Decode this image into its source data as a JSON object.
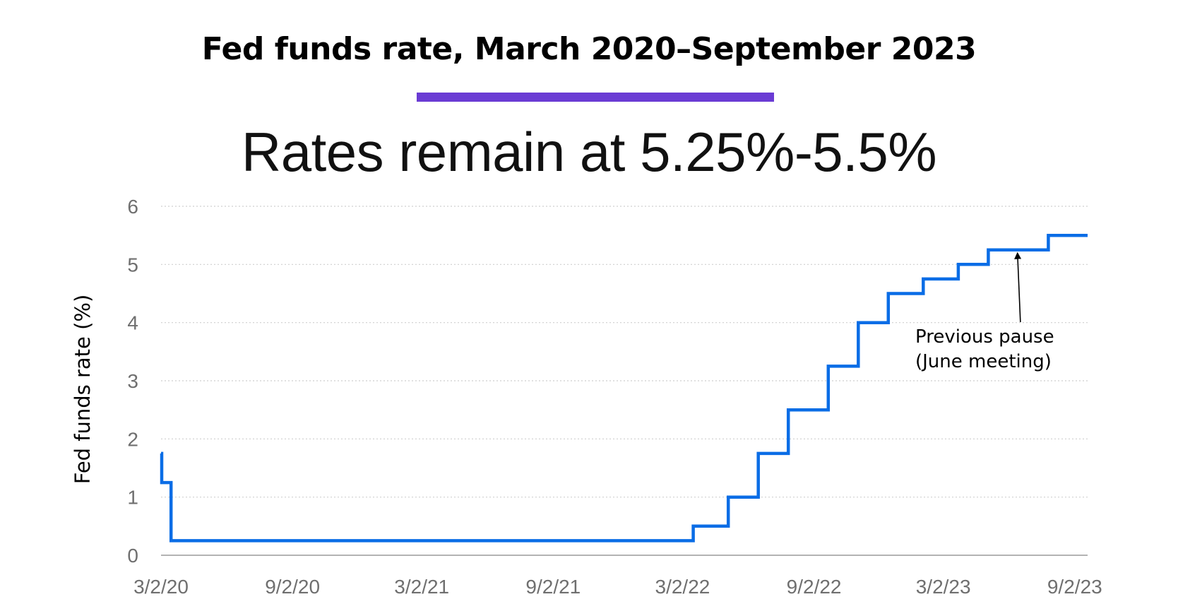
{
  "header": {
    "title": "Fed funds rate, March 2020–September 2023",
    "subtitle": "Rates remain at 5.25%-5.5%"
  },
  "colors": {
    "accent": "#6a3bd4",
    "line": "#0a6de6",
    "grid": "#cfcfcf",
    "axis": "#9a9a9a",
    "tick_text": "#6f6f6f"
  },
  "chart_data": {
    "type": "line",
    "title": "Fed funds rate, March 2020–September 2023",
    "subtitle": "Rates remain at 5.25%-5.5%",
    "xlabel": "",
    "ylabel": "Fed funds rate (%)",
    "ylim": [
      0,
      6
    ],
    "yticks": [
      "0",
      "1",
      "2",
      "3",
      "4",
      "5",
      "6"
    ],
    "xlim": [
      "2020-03-02",
      "2023-09-20"
    ],
    "xticks": [
      {
        "date": "2020-03-02",
        "label": "3/2/20"
      },
      {
        "date": "2020-09-02",
        "label": "9/2/20"
      },
      {
        "date": "2021-03-02",
        "label": "3/2/21"
      },
      {
        "date": "2021-09-02",
        "label": "9/2/21"
      },
      {
        "date": "2022-03-02",
        "label": "3/2/22"
      },
      {
        "date": "2022-09-02",
        "label": "9/2/22"
      },
      {
        "date": "2023-03-02",
        "label": "3/2/23"
      },
      {
        "date": "2023-09-02",
        "label": "9/2/23"
      }
    ],
    "grid": "horizontal dotted",
    "series": [
      {
        "name": "",
        "step": true,
        "points": [
          {
            "date": "2020-03-02",
            "value": 1.75
          },
          {
            "date": "2020-03-03",
            "value": 1.25
          },
          {
            "date": "2020-03-16",
            "value": 0.25
          },
          {
            "date": "2022-03-17",
            "value": 0.5
          },
          {
            "date": "2022-05-05",
            "value": 1.0
          },
          {
            "date": "2022-06-16",
            "value": 1.75
          },
          {
            "date": "2022-07-28",
            "value": 2.5
          },
          {
            "date": "2022-09-22",
            "value": 3.25
          },
          {
            "date": "2022-11-03",
            "value": 4.0
          },
          {
            "date": "2022-12-15",
            "value": 4.5
          },
          {
            "date": "2023-02-02",
            "value": 4.75
          },
          {
            "date": "2023-03-23",
            "value": 5.0
          },
          {
            "date": "2023-05-04",
            "value": 5.25
          },
          {
            "date": "2023-07-27",
            "value": 5.5
          },
          {
            "date": "2023-09-20",
            "value": 5.5
          }
        ]
      }
    ],
    "annotations": [
      {
        "lines": [
          "Previous pause",
          "(June meeting)"
        ],
        "target": {
          "date": "2023-06-14",
          "value": 5.25
        }
      }
    ]
  }
}
